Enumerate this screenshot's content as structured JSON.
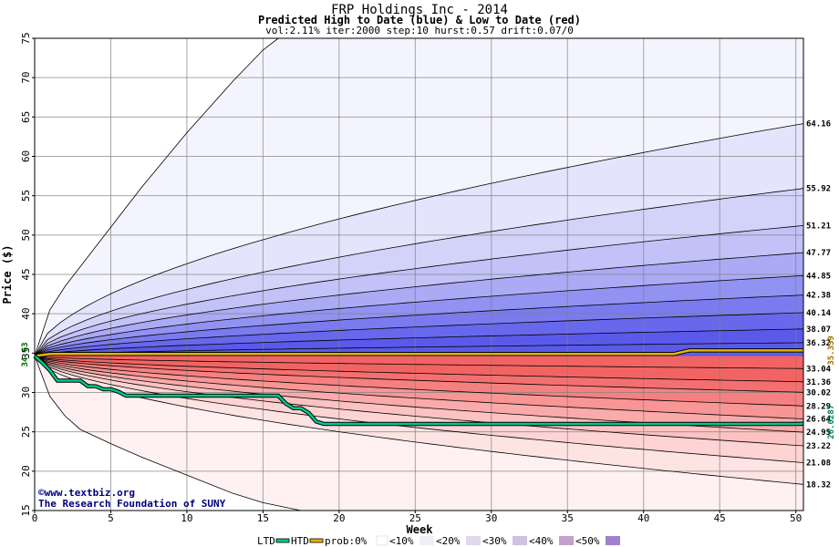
{
  "chart_data": {
    "type": "area",
    "title": "FRP Holdings Inc - 2014",
    "subtitle": "Predicted High to Date (blue) &  Low to Date (red)",
    "params": "vol:2.11% iter:2000 step:10 hurst:0.57 drift:0.07/0",
    "xlabel": "Week",
    "ylabel": "Price ($)",
    "xlim": [
      0,
      50.5
    ],
    "ylim": [
      15,
      75
    ],
    "x_ticks": [
      0,
      5,
      10,
      15,
      20,
      25,
      30,
      35,
      40,
      45,
      50
    ],
    "y_ticks": [
      15,
      20,
      25,
      30,
      35,
      40,
      45,
      50,
      55,
      60,
      65,
      70,
      75
    ],
    "grid": true,
    "start_price": 34.63,
    "start_label": "34.63",
    "high_percentile_end_values": [
      64.16,
      55.92,
      51.21,
      47.77,
      44.85,
      42.38,
      40.14,
      38.07,
      36.32
    ],
    "high_percentile_end_labels": [
      "64.16",
      "55.92",
      "51.21",
      "47.77",
      "44.85",
      "42.38",
      "40.14",
      "38.07",
      "36.32"
    ],
    "low_percentile_end_values": [
      33.04,
      31.36,
      30.02,
      28.29,
      26.64,
      24.95,
      23.22,
      21.08,
      18.32
    ],
    "low_percentile_end_labels": [
      "33.04",
      "31.36",
      "30.02",
      "28.29",
      "26.64",
      "24.95",
      "23.22",
      "21.08",
      "18.32"
    ],
    "high_extreme_curve": {
      "x": [
        0,
        1,
        2,
        3,
        5,
        7,
        10,
        13,
        15,
        16
      ],
      "y": [
        34.63,
        40.5,
        43.5,
        46,
        51,
        56,
        63,
        69.5,
        73.5,
        75
      ]
    },
    "low_extreme_curve": {
      "x": [
        0,
        1,
        2,
        3,
        5,
        7,
        10,
        13,
        15,
        17.5
      ],
      "y": [
        34.63,
        29.5,
        27,
        25.3,
        23.5,
        21.8,
        19.5,
        17.2,
        16,
        15
      ]
    },
    "htd_series": {
      "name": "HTD",
      "x": [
        0,
        1,
        2,
        3,
        4,
        5,
        6,
        7,
        8,
        9,
        10,
        11,
        12,
        13,
        14,
        15,
        16,
        17,
        18,
        19,
        20,
        21,
        22,
        23,
        24,
        25,
        26,
        27,
        28,
        29,
        30,
        31,
        32,
        33,
        34,
        35,
        36,
        37,
        38,
        39,
        40,
        41,
        42,
        43,
        44,
        45,
        46,
        47,
        48,
        49,
        50,
        50.5
      ],
      "y": [
        34.63,
        34.9,
        34.9,
        34.9,
        34.9,
        34.9,
        34.9,
        34.9,
        34.9,
        34.9,
        34.9,
        34.9,
        34.9,
        34.9,
        34.9,
        34.9,
        34.9,
        34.9,
        34.9,
        34.9,
        34.9,
        34.9,
        34.9,
        34.9,
        34.9,
        34.9,
        34.9,
        34.9,
        34.9,
        34.9,
        34.9,
        34.9,
        34.9,
        34.9,
        34.9,
        34.9,
        34.9,
        34.9,
        34.9,
        34.9,
        34.9,
        34.9,
        34.9,
        35.339,
        35.339,
        35.339,
        35.339,
        35.339,
        35.339,
        35.339,
        35.339,
        35.339
      ]
    },
    "ltd_series": {
      "name": "LTD",
      "x": [
        0,
        0.5,
        1,
        1.5,
        2,
        3,
        3.5,
        4,
        4.5,
        5,
        5.5,
        6,
        7,
        8,
        9,
        10,
        11,
        12,
        13,
        14,
        15,
        16,
        16.5,
        17,
        17.5,
        18,
        18.5,
        19,
        20,
        25,
        30,
        35,
        40,
        45,
        50,
        50.5
      ],
      "y": [
        34.63,
        33.8,
        32.8,
        31.5,
        31.5,
        31.5,
        30.8,
        30.8,
        30.4,
        30.4,
        30.1,
        29.6,
        29.6,
        29.6,
        29.6,
        29.6,
        29.6,
        29.6,
        29.6,
        29.6,
        29.6,
        29.6,
        28.6,
        28.0,
        28.0,
        27.4,
        26.3,
        26.0,
        26.0,
        26.0,
        26.0,
        26.0,
        26.0,
        26.0,
        26.0,
        26.0287
      ]
    },
    "htd_end_label": "35.339",
    "ltd_end_label": "26.0287",
    "band_fills_high": [
      "#f4f4fe",
      "#e4e4fc",
      "#d3d3fa",
      "#c2c2f8",
      "#aaaaf5",
      "#9292f2",
      "#7b7bef",
      "#6868ec",
      "#5a5aea"
    ],
    "band_fills_low": [
      "#fff1f1",
      "#fee3e3",
      "#fdd3d3",
      "#fcc2c2",
      "#faaaaa",
      "#f89595",
      "#f68080",
      "#f47070",
      "#f26464"
    ],
    "htd_color": "#e8b400",
    "ltd_color": "#00c88c"
  },
  "credits": {
    "site": "©www.textbiz.org",
    "org": "The Research Foundation of SUNY"
  },
  "legend": {
    "ltd": "LTD",
    "htd": "HTD",
    "prob": "prob:0%",
    "items": [
      "<10%",
      "<20%",
      "<30%",
      "<40%",
      "<50%"
    ],
    "swatch_colors": [
      "#ffffff",
      "#f0eef8",
      "#e0d8ee",
      "#d0c0e2",
      "#c4a0cc",
      "#a080d0"
    ]
  }
}
